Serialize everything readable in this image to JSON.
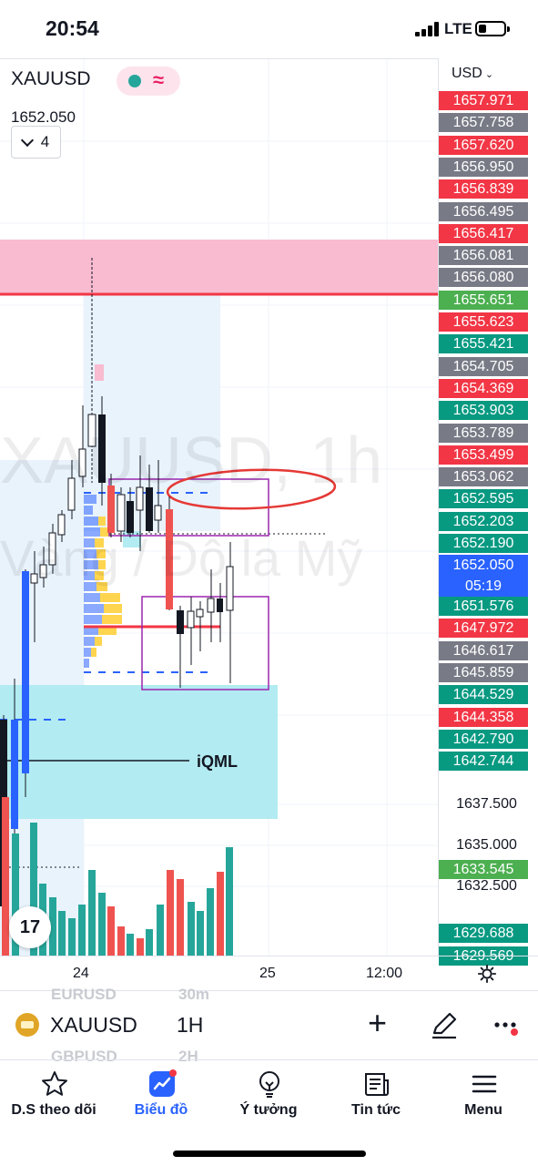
{
  "status": {
    "time": "20:54",
    "network": "LTE"
  },
  "symbol": {
    "name": "XAUUSD",
    "price": "1652.050",
    "indicator_count": "4"
  },
  "chart": {
    "watermark_line1": "XAUUSD, 1h",
    "watermark_line2": "Vàng / Đô la Mỹ",
    "annotation_label": "iQML",
    "logo_text": "17"
  },
  "price_scale": {
    "currency": "USD",
    "labels": [
      {
        "value": "1657.971",
        "color": "#f23645"
      },
      {
        "value": "1657.758",
        "color": "#787b86"
      },
      {
        "value": "1657.620",
        "color": "#f23645"
      },
      {
        "value": "1656.950",
        "color": "#787b86"
      },
      {
        "value": "1656.839",
        "color": "#f23645"
      },
      {
        "value": "1656.495",
        "color": "#787b86"
      },
      {
        "value": "1656.417",
        "color": "#f23645"
      },
      {
        "value": "1656.081",
        "color": "#787b86"
      },
      {
        "value": "1656.080",
        "color": "#787b86"
      },
      {
        "value": "1655.651",
        "color": "#4caf50"
      },
      {
        "value": "1655.623",
        "color": "#f23645"
      },
      {
        "value": "1655.421",
        "color": "#089981"
      },
      {
        "value": "1654.705",
        "color": "#787b86"
      },
      {
        "value": "1654.369",
        "color": "#f23645"
      },
      {
        "value": "1653.903",
        "color": "#089981"
      },
      {
        "value": "1653.789",
        "color": "#787b86"
      },
      {
        "value": "1653.499",
        "color": "#f23645"
      },
      {
        "value": "1653.062",
        "color": "#787b86"
      },
      {
        "value": "1652.595",
        "color": "#089981"
      },
      {
        "value": "1652.203",
        "color": "#089981"
      },
      {
        "value": "1652.190",
        "color": "#089981"
      }
    ],
    "current": {
      "value": "1652.050",
      "countdown": "05:19"
    },
    "labels_below": [
      {
        "value": "1651.576",
        "color": "#089981"
      },
      {
        "value": "1647.972",
        "color": "#f23645"
      },
      {
        "value": "1646.617",
        "color": "#787b86"
      },
      {
        "value": "1645.859",
        "color": "#787b86"
      },
      {
        "value": "1644.529",
        "color": "#089981"
      },
      {
        "value": "1644.358",
        "color": "#f23645"
      },
      {
        "value": "1642.790",
        "color": "#089981"
      },
      {
        "value": "1642.744",
        "color": "#089981"
      }
    ],
    "plain": [
      "1637.500",
      "1635.000",
      "1632.500"
    ],
    "extra": [
      {
        "value": "1633.545",
        "color": "#4caf50"
      },
      {
        "value": "1629.688",
        "color": "#089981"
      },
      {
        "value": "1629.569",
        "color": "#089981"
      }
    ]
  },
  "time_axis": {
    "labels": [
      "24",
      "25",
      "12:00"
    ]
  },
  "toolbar": {
    "symbol": "XAUUSD",
    "interval": "1H",
    "ghost_items": [
      "EURUSD",
      "30m",
      "GBPUSD",
      "2H"
    ]
  },
  "nav": [
    {
      "label": "D.S theo dõi",
      "icon": "star-icon"
    },
    {
      "label": "Biểu đồ",
      "icon": "chart-icon"
    },
    {
      "label": "Ý tưởng",
      "icon": "lightbulb-icon"
    },
    {
      "label": "Tin tức",
      "icon": "news-icon"
    },
    {
      "label": "Menu",
      "icon": "menu-icon"
    }
  ],
  "colors": {
    "up": "#26a69a",
    "down": "#ef5350",
    "accent": "#2962ff"
  }
}
